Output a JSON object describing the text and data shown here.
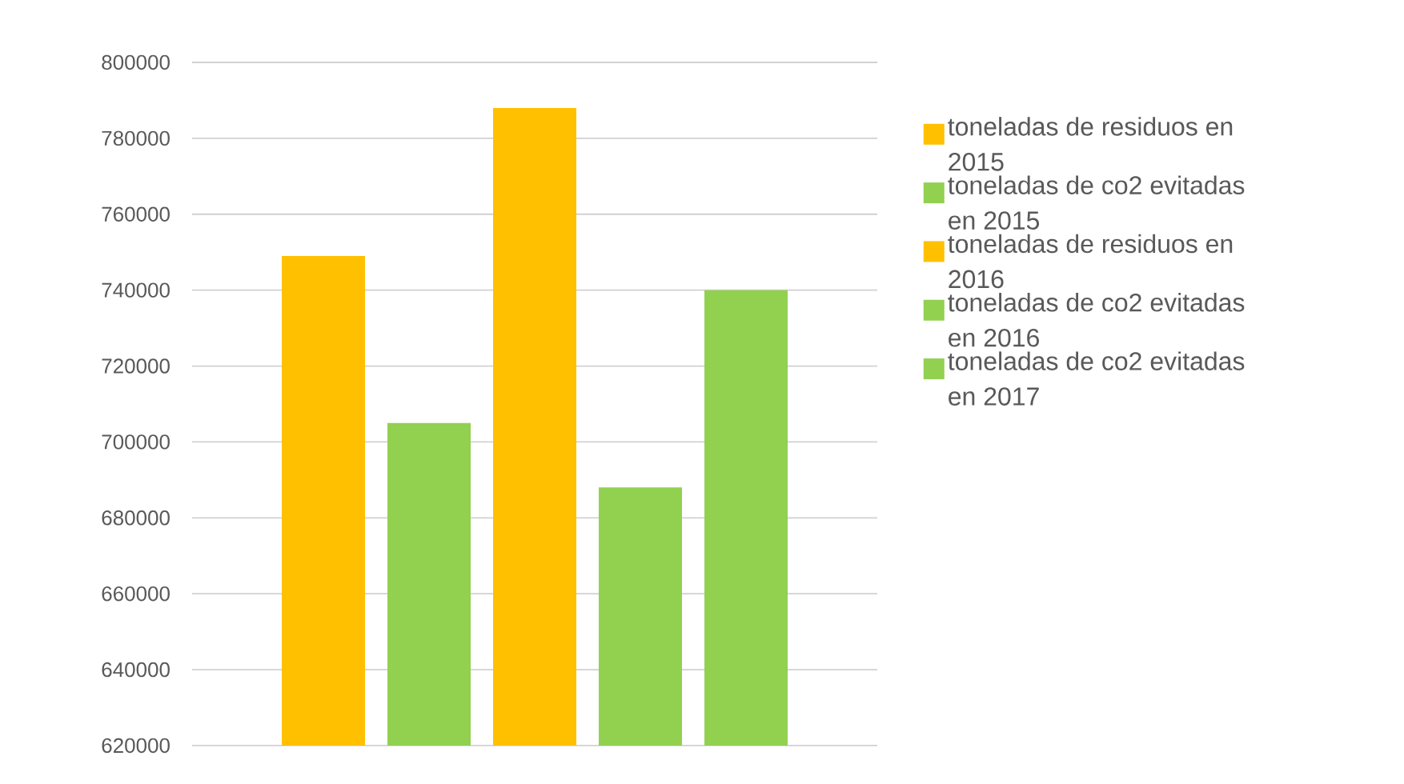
{
  "chart_data": {
    "type": "bar",
    "categories": [
      null
    ],
    "series": [
      {
        "name": "toneladas de residuos en 2015",
        "color": "#ffc000",
        "values": [
          749000
        ]
      },
      {
        "name": "toneladas de co2 evitadas en 2015",
        "color": "#92d050",
        "values": [
          705000
        ]
      },
      {
        "name": "toneladas de residuos en 2016",
        "color": "#ffc000",
        "values": [
          788000
        ]
      },
      {
        "name": "toneladas de co2 evitadas en 2016",
        "color": "#92d050",
        "values": [
          688000
        ]
      },
      {
        "name": "toneladas de co2 evitadas en 2017",
        "color": "#92d050",
        "values": [
          740000
        ]
      }
    ],
    "ylim": [
      620000,
      800000
    ],
    "yticks": [
      620000,
      640000,
      660000,
      680000,
      700000,
      720000,
      740000,
      760000,
      780000,
      800000
    ],
    "grid": "y",
    "legend": "right"
  }
}
